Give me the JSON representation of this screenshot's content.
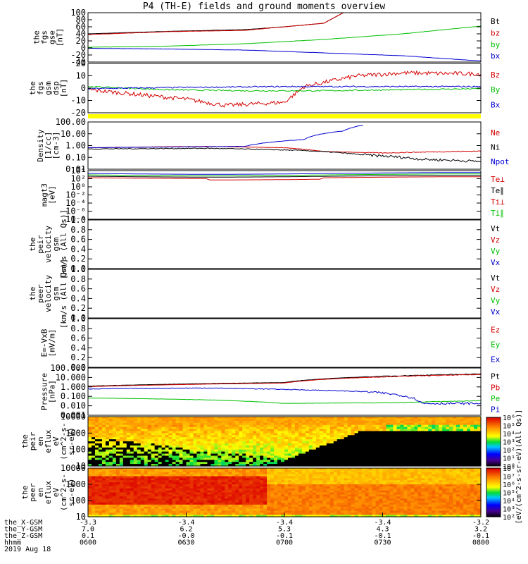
{
  "title": "P4 (TH-E) fields and ground moments overview",
  "panels": [
    {
      "id": "p1",
      "ylabel": [
        "the",
        "fgs",
        "gse",
        "[nT]"
      ],
      "ticks": [
        "100",
        "80",
        "60",
        "40",
        "20",
        "0",
        "-20",
        "-40"
      ],
      "legend": [
        {
          "t": "Bt",
          "c": "#000000"
        },
        {
          "t": "bz",
          "c": "#d40000"
        },
        {
          "t": "by",
          "c": "#00c000"
        },
        {
          "t": "bx",
          "c": "#0000d0"
        }
      ]
    },
    {
      "id": "p2",
      "ylabel": [
        "the",
        "fgs",
        "gsm",
        "dsp",
        "[nT]"
      ],
      "ticks": [
        "20",
        "10",
        "0",
        "-10",
        "-20"
      ],
      "legend": [
        {
          "t": "Bz",
          "c": "#d40000"
        },
        {
          "t": "By",
          "c": "#00c000"
        },
        {
          "t": "Bx",
          "c": "#0000d0"
        }
      ]
    },
    {
      "id": "p3",
      "ylabel": [
        "Density",
        "[1/cc]",
        "[cm-3]"
      ],
      "ticks": [
        "100.00",
        "10.00",
        "1.00",
        "0.10",
        "0.01"
      ],
      "legend": [
        {
          "t": "Ne",
          "c": "#d40000"
        },
        {
          "t": "Ni",
          "c": "#000000"
        },
        {
          "t": "Npot",
          "c": "#0000d0"
        }
      ]
    },
    {
      "id": "p4",
      "ylabel": [
        "magt3",
        "[eV]"
      ],
      "ticks": [
        "10⁴",
        "10²",
        "10⁰",
        "10⁻²",
        "10⁻⁴",
        "10⁻⁶",
        "10⁻⁸"
      ],
      "legend": [
        {
          "t": "Te⊥",
          "c": "#d40000"
        },
        {
          "t": "Te∥",
          "c": "#000000"
        },
        {
          "t": "Ti⊥",
          "c": "#d40000"
        },
        {
          "t": "Ti∥",
          "c": "#00c000"
        }
      ]
    },
    {
      "id": "p5",
      "ylabel": [
        "the",
        "peir",
        "velocity",
        "gsm",
        "[km/s (All Qs)]"
      ],
      "ticks": [
        "1.0",
        "0.8",
        "0.6",
        "0.4",
        "0.2",
        "0.0"
      ],
      "legend": [
        {
          "t": "Vt",
          "c": "#000000"
        },
        {
          "t": "Vz",
          "c": "#d40000"
        },
        {
          "t": "Vy",
          "c": "#00c000"
        },
        {
          "t": "Vx",
          "c": "#0000d0"
        }
      ]
    },
    {
      "id": "p6",
      "ylabel": [
        "the",
        "peer",
        "velocity",
        "gsm",
        "[km/s (All Qs)]"
      ],
      "ticks": [
        "1.0",
        "0.8",
        "0.6",
        "0.4",
        "0.2",
        "0.0"
      ],
      "legend": [
        {
          "t": "Vt",
          "c": "#000000"
        },
        {
          "t": "Vz",
          "c": "#d40000"
        },
        {
          "t": "Vy",
          "c": "#00c000"
        },
        {
          "t": "Vx",
          "c": "#0000d0"
        }
      ]
    },
    {
      "id": "p7",
      "ylabel": [
        "E=-VxB",
        "[mV/m]"
      ],
      "ticks": [
        "1.0",
        "0.8",
        "0.6",
        "0.4",
        "0.2",
        "0.0"
      ],
      "legend": [
        {
          "t": "Ez",
          "c": "#d40000"
        },
        {
          "t": "Ey",
          "c": "#00c000"
        },
        {
          "t": "Ex",
          "c": "#0000d0"
        }
      ]
    },
    {
      "id": "p8",
      "ylabel": [
        "Pressure",
        "[nPa]"
      ],
      "ticks": [
        "100.000",
        "10.000",
        "1.000",
        "0.100",
        "0.010",
        "0.001"
      ],
      "legend": [
        {
          "t": "Pt",
          "c": "#000000"
        },
        {
          "t": "Pb",
          "c": "#d40000"
        },
        {
          "t": "Pe",
          "c": "#00c000"
        },
        {
          "t": "Pi",
          "c": "#0000d0"
        }
      ]
    },
    {
      "id": "p9",
      "ylabel": [
        "the",
        "peir",
        "en",
        "eflux",
        "eV",
        "(cm^2-s-",
        "sr-eV)"
      ],
      "ticks": [
        "10000",
        "1000",
        "100",
        "10"
      ]
    },
    {
      "id": "p10",
      "ylabel": [
        "the",
        "peer",
        "en",
        "eflux",
        "eV",
        "(cm^2-s-",
        "sr-eV)"
      ],
      "ticks": [
        "10000",
        "1000",
        "100",
        "10"
      ]
    }
  ],
  "colorbar": {
    "label": "[eV/(cm^2-s-sr-eV)(All Qs)]",
    "top_ticks": [
      "10⁶",
      "10⁵",
      "10⁴",
      "10³",
      "10²",
      "10¹",
      "10⁰"
    ],
    "bottom_ticks": [
      "10⁸",
      "10⁷",
      "10⁶",
      "10⁵",
      "10⁴",
      "10³",
      "10²"
    ]
  },
  "xaxis": {
    "row_labels": [
      "the_X-GSM",
      "the_Y-GSM",
      "the_Z-GSM",
      "hhmm",
      "2019 Aug 18"
    ],
    "columns": [
      [
        "-3.3",
        "7.0",
        "0.1",
        "0600"
      ],
      [
        "-3.4",
        "6.2",
        "-0.0",
        "0630"
      ],
      [
        "-3.4",
        "5.3",
        "-0.1",
        "0700"
      ],
      [
        "-3.4",
        "4.3",
        "-0.1",
        "0730"
      ],
      [
        "-3.2",
        "3.2",
        "-0.1",
        "0800"
      ]
    ]
  },
  "chart_data": {
    "type": "line",
    "title": "P4 (TH-E) fields and ground moments overview",
    "x_ticks": [
      "0600",
      "0630",
      "0700",
      "0730",
      "0800"
    ],
    "series": [
      {
        "panel": "fgs_gse",
        "name": "Bt",
        "color": "#000000",
        "points": [
          [
            0,
            40
          ],
          [
            0.2,
            47
          ],
          [
            0.4,
            52
          ],
          [
            0.5,
            60
          ],
          [
            0.6,
            70
          ],
          [
            0.65,
            100
          ]
        ]
      },
      {
        "panel": "fgs_gse",
        "name": "bz",
        "color": "#d40000",
        "points": [
          [
            0,
            38
          ],
          [
            0.2,
            46
          ],
          [
            0.4,
            50
          ],
          [
            0.5,
            60
          ],
          [
            0.6,
            70
          ],
          [
            0.65,
            100
          ]
        ]
      },
      {
        "panel": "fgs_gse",
        "name": "by",
        "color": "#00c000",
        "points": [
          [
            0,
            2
          ],
          [
            0.2,
            5
          ],
          [
            0.4,
            12
          ],
          [
            0.6,
            24
          ],
          [
            0.8,
            40
          ],
          [
            1,
            62
          ]
        ]
      },
      {
        "panel": "fgs_gse",
        "name": "bx",
        "color": "#0000d0",
        "points": [
          [
            0,
            -1
          ],
          [
            0.2,
            -3
          ],
          [
            0.4,
            -6
          ],
          [
            0.6,
            -14
          ],
          [
            0.8,
            -22
          ],
          [
            1,
            -37
          ]
        ]
      },
      {
        "panel": "fgs_gsm_dsp",
        "name": "Bz",
        "color": "#d40000",
        "points": [
          [
            0,
            -3
          ],
          [
            0.25,
            -12
          ],
          [
            0.35,
            -18
          ],
          [
            0.5,
            -15
          ],
          [
            0.55,
            0
          ],
          [
            0.68,
            10
          ],
          [
            0.8,
            13
          ],
          [
            1,
            12
          ]
        ]
      },
      {
        "panel": "fgs_gsm_dsp",
        "name": "By",
        "color": "#00c000",
        "points": [
          [
            0,
            0
          ],
          [
            0.2,
            -3
          ],
          [
            0.4,
            -4
          ],
          [
            0.6,
            -4
          ],
          [
            0.8,
            -3
          ],
          [
            1,
            -2
          ]
        ]
      },
      {
        "panel": "fgs_gsm_dsp",
        "name": "Bx",
        "color": "#0000d0",
        "points": [
          [
            0,
            -2
          ],
          [
            0.2,
            -1
          ],
          [
            0.5,
            0
          ],
          [
            0.8,
            0
          ],
          [
            1,
            0
          ]
        ]
      },
      {
        "panel": "density",
        "name": "Ne",
        "color": "#d40000",
        "points": [
          [
            0,
            0.9
          ],
          [
            0.3,
            1.2
          ],
          [
            0.5,
            0.9
          ],
          [
            0.6,
            0.4
          ],
          [
            0.75,
            0.3
          ],
          [
            1,
            0.45
          ]
        ]
      },
      {
        "panel": "density",
        "name": "Ni",
        "color": "#000000",
        "points": [
          [
            0,
            0.7
          ],
          [
            0.3,
            0.8
          ],
          [
            0.55,
            0.5
          ],
          [
            0.7,
            0.2
          ],
          [
            0.85,
            0.08
          ],
          [
            1,
            0.05
          ]
        ]
      },
      {
        "panel": "density",
        "name": "Npot",
        "color": "#0000d0",
        "points": [
          [
            0,
            0.9
          ],
          [
            0.4,
            1.2
          ],
          [
            0.55,
            5
          ],
          [
            0.65,
            30
          ],
          [
            0.7,
            100
          ]
        ]
      },
      {
        "panel": "pressure",
        "name": "Pt",
        "color": "#000000",
        "points": [
          [
            0,
            1.6
          ],
          [
            0.5,
            4
          ],
          [
            1,
            35
          ]
        ]
      },
      {
        "panel": "pressure",
        "name": "Pb",
        "color": "#d40000",
        "points": [
          [
            0,
            1.4
          ],
          [
            0.5,
            3.5
          ],
          [
            1,
            30
          ]
        ]
      },
      {
        "panel": "pressure",
        "name": "Pe",
        "color": "#00c000",
        "points": [
          [
            0,
            0.08
          ],
          [
            0.3,
            0.05
          ],
          [
            0.5,
            0.02
          ],
          [
            0.8,
            0.025
          ],
          [
            1,
            0.04
          ]
        ]
      },
      {
        "panel": "pressure",
        "name": "Pi",
        "color": "#0000d0",
        "points": [
          [
            0,
            0.8
          ],
          [
            0.3,
            1
          ],
          [
            0.7,
            0.4
          ],
          [
            0.85,
            0.02
          ],
          [
            1,
            0.02
          ]
        ]
      }
    ]
  }
}
